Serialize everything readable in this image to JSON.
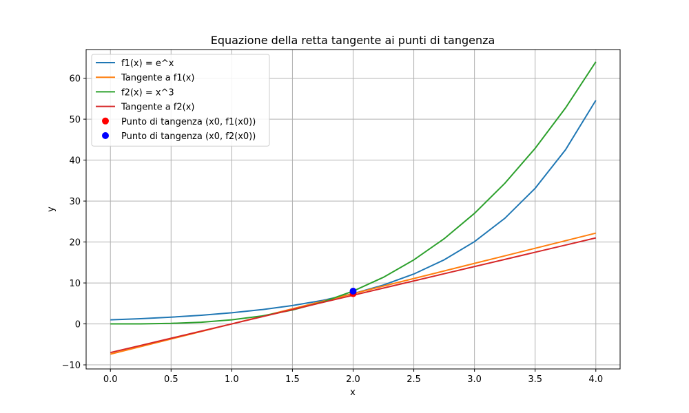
{
  "chart_data": {
    "type": "line",
    "title": "Equazione della retta tangente ai punti di tangenza",
    "xlabel": "x",
    "ylabel": "y",
    "xlim": [
      -0.2,
      4.2
    ],
    "ylim": [
      -11.0,
      67.0
    ],
    "x_ticks": [
      0.0,
      0.5,
      1.0,
      1.5,
      2.0,
      2.5,
      3.0,
      3.5,
      4.0
    ],
    "x_tick_labels": [
      "0.0",
      "0.5",
      "1.0",
      "1.5",
      "2.0",
      "2.5",
      "3.0",
      "3.5",
      "4.0"
    ],
    "y_ticks": [
      -10,
      0,
      10,
      20,
      30,
      40,
      50,
      60
    ],
    "y_tick_labels": [
      "−10",
      "0",
      "10",
      "20",
      "30",
      "40",
      "50",
      "60"
    ],
    "grid": true,
    "legend_position": "top-left",
    "x": [
      0.0,
      0.25,
      0.5,
      0.75,
      1.0,
      1.25,
      1.5,
      1.75,
      2.0,
      2.25,
      2.5,
      2.75,
      3.0,
      3.25,
      3.5,
      3.75,
      4.0
    ],
    "series": [
      {
        "name": "f1(x) = e^x",
        "color": "#1f77b4",
        "values": [
          1.0,
          1.28,
          1.65,
          2.12,
          2.72,
          3.49,
          4.48,
          5.75,
          7.39,
          9.49,
          12.18,
          15.64,
          20.09,
          25.79,
          33.12,
          42.52,
          54.6
        ]
      },
      {
        "name": "Tangente a f1(x)",
        "color": "#ff7f0e",
        "values": [
          -7.39,
          -5.54,
          -3.69,
          -1.85,
          0.0,
          1.85,
          3.69,
          5.54,
          7.39,
          9.24,
          11.08,
          12.93,
          14.78,
          16.62,
          18.47,
          20.32,
          22.17
        ]
      },
      {
        "name": "f2(x) = x^3",
        "color": "#2ca02c",
        "values": [
          0.0,
          0.02,
          0.13,
          0.42,
          1.0,
          1.95,
          3.38,
          5.36,
          8.0,
          11.39,
          15.63,
          20.8,
          27.0,
          34.33,
          42.88,
          52.73,
          64.0
        ]
      },
      {
        "name": "Tangente a f2(x)",
        "color": "#d62728",
        "values": [
          -7.0,
          -5.25,
          -3.5,
          -1.75,
          0.0,
          1.75,
          3.5,
          5.25,
          7.0,
          8.75,
          10.5,
          12.25,
          14.0,
          15.75,
          17.5,
          19.25,
          21.0
        ]
      }
    ],
    "points": [
      {
        "name": "Punto di tangenza (x0, f1(x0))",
        "color": "#ff0000",
        "x": 2.0,
        "y": 7.39
      },
      {
        "name": "Punto di tangenza (x0, f2(x0))",
        "color": "#0000ff",
        "x": 2.0,
        "y": 8.0
      }
    ]
  }
}
